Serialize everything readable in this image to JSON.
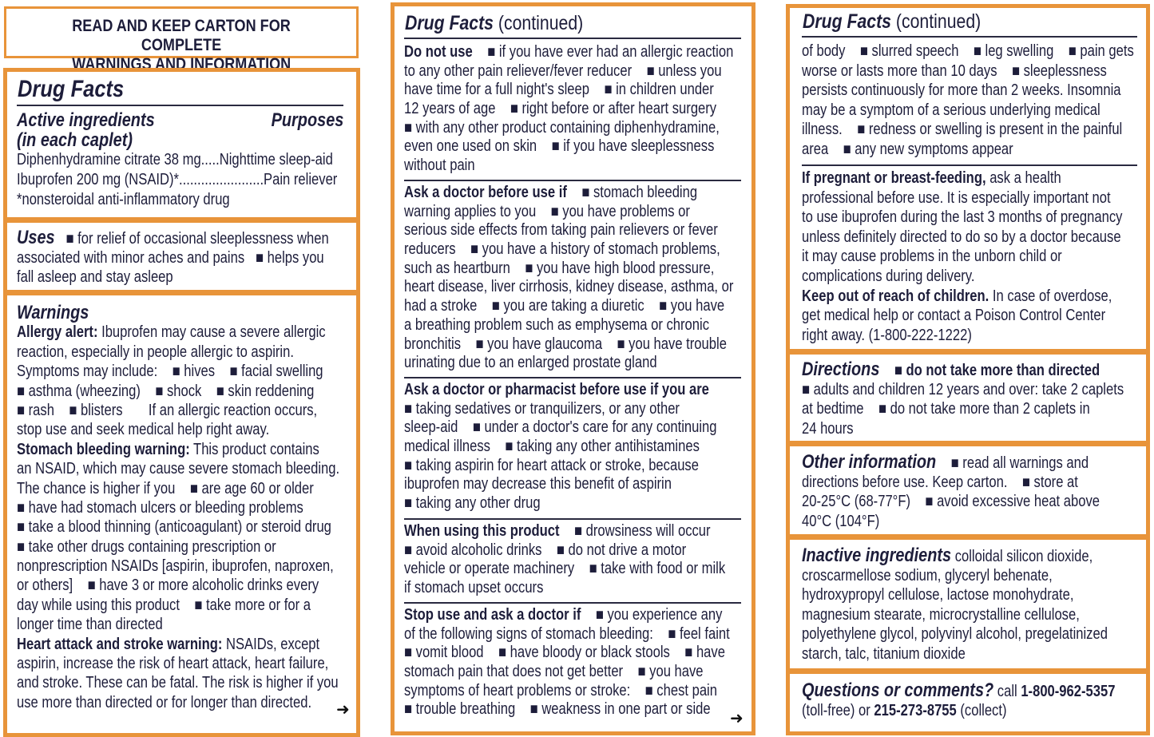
{
  "colors": {
    "border": "#e8943a",
    "text": "#1d1d3a"
  },
  "notice": {
    "line1": "READ AND KEEP CARTON FOR COMPLETE",
    "line2": "WARNINGS AND INFORMATION"
  },
  "col1": {
    "title": "Drug Facts",
    "arrow_icon": "➜",
    "sections": [
      {
        "lines": [
          [
            {
              "h": "Active ingredients"
            },
            {
              "hr": "Purposes"
            }
          ],
          [
            {
              "h": "(in each caplet)"
            }
          ],
          [
            {
              "t": "Diphenhydramine citrate 38 mg.....Nighttime sleep-aid"
            }
          ],
          [
            {
              "t": "Ibuprofen 200 mg (NSAID)*.......................Pain reliever"
            }
          ],
          [
            {
              "t": "*nonsteroidal anti-inflammatory drug"
            }
          ]
        ]
      },
      {
        "lines": [
          [
            {
              "h": "Uses"
            },
            {
              "t": "   ■ for relief of occasional sleeplessness when"
            }
          ],
          [
            {
              "t": "associated with minor aches and pains   ■ helps you"
            }
          ],
          [
            {
              "t": "fall asleep and stay asleep"
            }
          ]
        ]
      },
      {
        "lines": [
          [
            {
              "h": "Warnings"
            }
          ],
          [
            {
              "b": "Allergy alert:"
            },
            {
              "t": " Ibuprofen may cause a severe allergic"
            }
          ],
          [
            {
              "t": "reaction, especially in people allergic to aspirin."
            }
          ],
          [
            {
              "t": "Symptoms may include:    ■ hives    ■ facial swelling"
            }
          ],
          [
            {
              "t": "■ asthma (wheezing)    ■ shock    ■ skin reddening"
            }
          ],
          [
            {
              "t": "■ rash    ■ blisters       If an allergic reaction occurs,"
            }
          ],
          [
            {
              "t": "stop use and seek medical help right away."
            }
          ],
          [
            {
              "b": "Stomach bleeding warning:"
            },
            {
              "t": " This product contains"
            }
          ],
          [
            {
              "t": "an NSAID, which may cause severe stomach bleeding."
            }
          ],
          [
            {
              "t": "The chance is higher if you    ■ are age 60 or older"
            }
          ],
          [
            {
              "t": "■ have had stomach ulcers or bleeding problems"
            }
          ],
          [
            {
              "t": "■ take a blood thinning (anticoagulant) or steroid drug"
            }
          ],
          [
            {
              "t": "■ take other drugs containing prescription or"
            }
          ],
          [
            {
              "t": "nonprescription NSAIDs [aspirin, ibuprofen, naproxen,"
            }
          ],
          [
            {
              "t": "or others]    ■ have 3 or more alcoholic drinks every"
            }
          ],
          [
            {
              "t": "day while using this product    ■ take more or for a"
            }
          ],
          [
            {
              "t": "longer time than directed"
            }
          ],
          [
            {
              "b": "Heart attack and stroke warning:"
            },
            {
              "t": " NSAIDs, except"
            }
          ],
          [
            {
              "t": "aspirin, increase the risk of heart attack, heart failure,"
            }
          ],
          [
            {
              "t": "and stroke. These can be fatal. The risk is higher if you"
            }
          ],
          [
            {
              "t": "use more than directed or for longer than directed."
            }
          ]
        ]
      }
    ]
  },
  "col2": {
    "title": "Drug Facts",
    "title_suffix": "(continued)",
    "arrow_icon": "➜",
    "sections": [
      {
        "lines": [
          [
            {
              "b": "Do not use"
            },
            {
              "t": "    ■ if you have ever had an allergic reaction"
            }
          ],
          [
            {
              "t": "to any other pain reliever/fever reducer    ■ unless you"
            }
          ],
          [
            {
              "t": "have time for a full night's sleep    ■ in children under"
            }
          ],
          [
            {
              "t": "12 years of age    ■ right before or after heart surgery"
            }
          ],
          [
            {
              "t": "■ with any other product containing diphenhydramine,"
            }
          ],
          [
            {
              "t": "even one used on skin    ■ if you have sleeplessness"
            }
          ],
          [
            {
              "t": "without pain"
            }
          ]
        ]
      },
      {
        "lines": [
          [
            {
              "b": "Ask a doctor before use if"
            },
            {
              "t": "    ■ stomach bleeding"
            }
          ],
          [
            {
              "t": "warning applies to you    ■ you have problems or"
            }
          ],
          [
            {
              "t": "serious side effects from taking pain relievers or fever"
            }
          ],
          [
            {
              "t": "reducers    ■ you have a history of stomach problems,"
            }
          ],
          [
            {
              "t": "such as heartburn    ■ you have high blood pressure,"
            }
          ],
          [
            {
              "t": "heart disease, liver cirrhosis, kidney disease, asthma, or"
            }
          ],
          [
            {
              "t": "had a stroke    ■ you are taking a diuretic    ■ you have"
            }
          ],
          [
            {
              "t": "a breathing problem such as emphysema or chronic"
            }
          ],
          [
            {
              "t": "bronchitis    ■ you have glaucoma    ■ you have trouble"
            }
          ],
          [
            {
              "t": "urinating due to an enlarged prostate gland"
            }
          ]
        ]
      },
      {
        "lines": [
          [
            {
              "b": "Ask a doctor or pharmacist before use if you are"
            }
          ],
          [
            {
              "t": "■ taking sedatives or tranquilizers, or any other"
            }
          ],
          [
            {
              "t": "sleep-aid    ■ under a doctor's care for any continuing"
            }
          ],
          [
            {
              "t": "medical illness    ■ taking any other antihistamines"
            }
          ],
          [
            {
              "t": "■ taking aspirin for heart attack or stroke, because"
            }
          ],
          [
            {
              "t": "ibuprofen may decrease this benefit of aspirin"
            }
          ],
          [
            {
              "t": "■ taking any other drug"
            }
          ]
        ]
      },
      {
        "lines": [
          [
            {
              "b": "When using this product"
            },
            {
              "t": "    ■ drowsiness will occur"
            }
          ],
          [
            {
              "t": "■ avoid alcoholic drinks    ■ do not drive a motor"
            }
          ],
          [
            {
              "t": "vehicle or operate machinery    ■ take with food or milk"
            }
          ],
          [
            {
              "t": "if stomach upset occurs"
            }
          ]
        ]
      },
      {
        "lines": [
          [
            {
              "b": "Stop use and ask a doctor if"
            },
            {
              "t": "    ■ you experience any"
            }
          ],
          [
            {
              "t": "of the following signs of stomach bleeding:    ■ feel faint"
            }
          ],
          [
            {
              "t": "■ vomit blood    ■ have bloody or black stools    ■ have"
            }
          ],
          [
            {
              "t": "stomach pain that does not get better    ■ you have"
            }
          ],
          [
            {
              "t": "symptoms of heart problems or stroke:    ■ chest pain"
            }
          ],
          [
            {
              "t": "■ trouble breathing    ■ weakness in one part or side"
            }
          ]
        ]
      }
    ]
  },
  "col3": {
    "title": "Drug Facts",
    "title_suffix": "(continued)",
    "sections": [
      {
        "lines": [
          [
            {
              "t": "of body    ■ slurred speech    ■ leg swelling    ■ pain gets"
            }
          ],
          [
            {
              "t": "worse or lasts more than 10 days    ■ sleeplessness"
            }
          ],
          [
            {
              "t": "persists continuously for more than 2 weeks. Insomnia"
            }
          ],
          [
            {
              "t": "may be a symptom of a serious underlying medical"
            }
          ],
          [
            {
              "t": "illness.    ■ redness or swelling is present in the painful"
            }
          ],
          [
            {
              "t": "area    ■ any new symptoms appear"
            }
          ]
        ]
      },
      {
        "lines": [
          [
            {
              "b": "If pregnant or breast-feeding,"
            },
            {
              "t": " ask a health"
            }
          ],
          [
            {
              "t": "professional before use. It is especially important not"
            }
          ],
          [
            {
              "t": "to use ibuprofen during the last 3 months of pregnancy"
            }
          ],
          [
            {
              "t": "unless definitely directed to do so by a doctor because"
            }
          ],
          [
            {
              "t": "it may cause problems in the unborn child or"
            }
          ],
          [
            {
              "t": "complications during delivery."
            }
          ],
          [
            {
              "b": "Keep out of reach of children."
            },
            {
              "t": " In case of overdose,"
            }
          ],
          [
            {
              "t": "get medical help or contact a Poison Control Center"
            }
          ],
          [
            {
              "t": "right away. (1-800-222-1222)"
            }
          ]
        ]
      },
      {
        "lines": [
          [
            {
              "h": "Directions"
            },
            {
              "t": "    "
            },
            {
              "b": "■ do not take more than directed"
            }
          ],
          [
            {
              "t": "■ adults and children 12 years and over: take 2 caplets"
            }
          ],
          [
            {
              "t": "at bedtime    ■ do not take more than 2 caplets in"
            }
          ],
          [
            {
              "t": "24 hours"
            }
          ]
        ]
      },
      {
        "lines": [
          [
            {
              "h": "Other information"
            },
            {
              "t": "    ■ read all warnings and"
            }
          ],
          [
            {
              "t": "directions before use. Keep carton.    ■ store at"
            }
          ],
          [
            {
              "t": "20-25°C (68-77°F)    ■ avoid excessive heat above"
            }
          ],
          [
            {
              "t": "40°C (104°F)"
            }
          ]
        ]
      },
      {
        "lines": [
          [
            {
              "h": "Inactive ingredients"
            },
            {
              "t": " colloidal silicon dioxide,"
            }
          ],
          [
            {
              "t": "croscarmellose sodium, glyceryl behenate,"
            }
          ],
          [
            {
              "t": "hydroxypropyl cellulose, lactose monohydrate,"
            }
          ],
          [
            {
              "t": "magnesium stearate, microcrystalline cellulose,"
            }
          ],
          [
            {
              "t": "polyethylene glycol, polyvinyl alcohol, pregelatinized"
            }
          ],
          [
            {
              "t": "starch, talc, titanium dioxide"
            }
          ]
        ]
      },
      {
        "lines": [
          [
            {
              "h": "Questions or comments?"
            },
            {
              "t": " call "
            },
            {
              "b": "1-800-962-5357"
            }
          ],
          [
            {
              "t": "(toll-free) or "
            },
            {
              "b": "215-273-8755"
            },
            {
              "t": " (collect)"
            }
          ]
        ]
      }
    ]
  }
}
